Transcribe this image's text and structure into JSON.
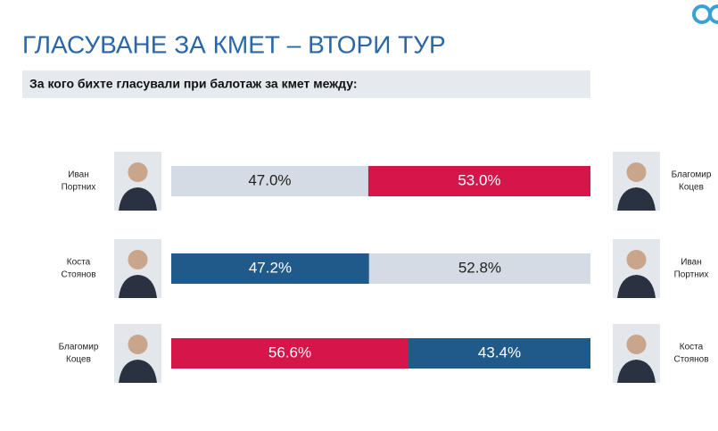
{
  "chart_data": {
    "type": "bar",
    "orientation": "horizontal",
    "stacked": true,
    "title": "ГЛАСУВАНЕ ЗА КМЕТ – ВТОРИ ТУР",
    "subtitle": "За кого бихте гласували при балотаж за кмет между:",
    "xlim": [
      0,
      100
    ],
    "rows": [
      {
        "left_name": [
          "Иван",
          "Портних"
        ],
        "right_name": [
          "Благомир",
          "Коцев"
        ],
        "values": [
          47.0,
          53.0
        ],
        "value_labels": [
          "47.0%",
          "53.0%"
        ],
        "colors": [
          "#d5dbe4",
          "#d6154b"
        ]
      },
      {
        "left_name": [
          "Коста",
          "Стоянов"
        ],
        "right_name": [
          "Иван",
          "Портних"
        ],
        "values": [
          47.2,
          52.8
        ],
        "value_labels": [
          "47.2%",
          "52.8%"
        ],
        "colors": [
          "#1f5a8b",
          "#d5dbe4"
        ]
      },
      {
        "left_name": [
          "Благомир",
          "Коцев"
        ],
        "right_name": [
          "Коста",
          "Стоянов"
        ],
        "values": [
          56.6,
          43.4
        ],
        "value_labels": [
          "56.6%",
          "43.4%"
        ],
        "colors": [
          "#d6154b",
          "#1f5a8b"
        ]
      }
    ]
  }
}
